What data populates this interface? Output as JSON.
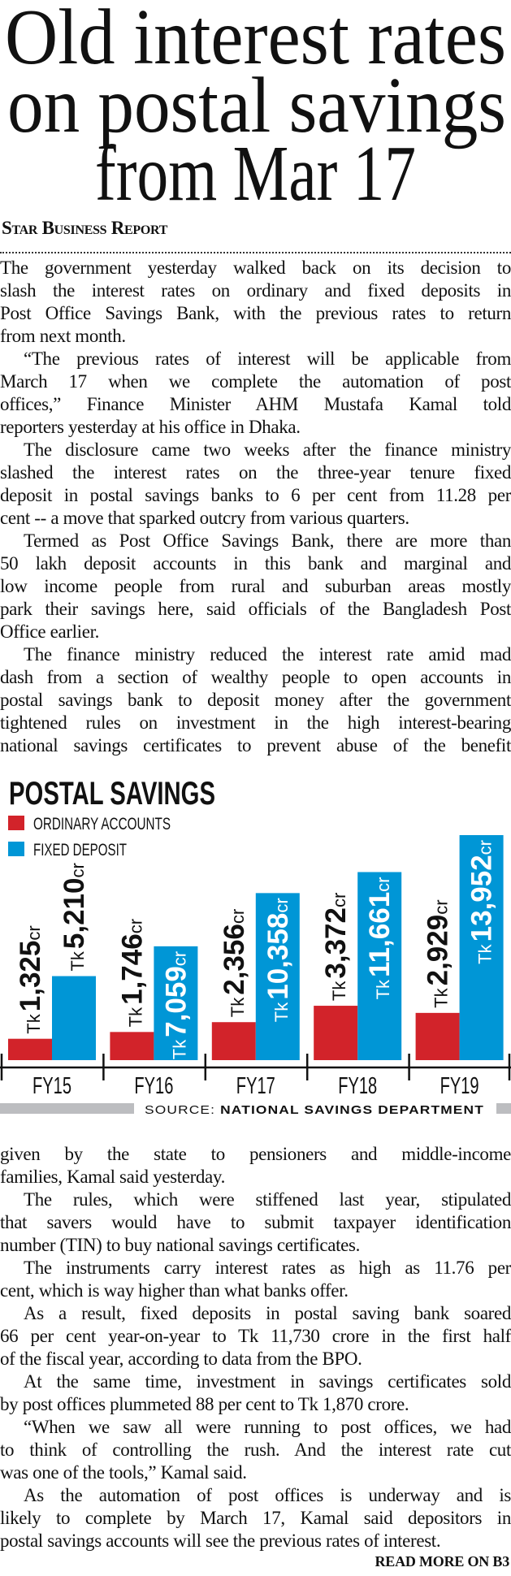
{
  "headline": {
    "lines": [
      "Old interest rates",
      "on postal savings",
      "from Mar 17"
    ]
  },
  "byline": "Star Business Report",
  "article": {
    "block1": [
      {
        "indent": false,
        "ends": true,
        "lines": [
          "The government yesterday walked back on its decision to",
          "slash the interest rates on ordinary and fixed deposits in",
          "Post Office Savings Bank, with the previous rates to return",
          "from next month."
        ]
      },
      {
        "indent": true,
        "ends": true,
        "lines": [
          "“The previous rates of interest will be applicable from",
          "March 17 when we complete the automation of post",
          "offices,” Finance Minister AHM Mustafa Kamal told",
          "reporters yesterday at his office in Dhaka."
        ]
      },
      {
        "indent": true,
        "ends": true,
        "lines": [
          "The disclosure came two weeks after the finance ministry",
          "slashed the interest rates on the three-year tenure fixed",
          "deposit in postal savings banks to 6 per cent from 11.28 per",
          "cent -- a move that sparked outcry from various quarters."
        ]
      },
      {
        "indent": true,
        "ends": true,
        "lines": [
          "Termed as Post Office Savings Bank, there are more than",
          "50 lakh deposit accounts in this bank and marginal and",
          "low income people from rural and suburban areas mostly",
          "park their savings here, said officials of the Bangladesh Post",
          "Office earlier."
        ]
      },
      {
        "indent": true,
        "ends": false,
        "lines": [
          "The finance ministry reduced the interest rate amid mad",
          "dash from a section of wealthy people to open accounts in",
          "postal savings bank to deposit money after the government",
          "tightened rules on investment in the high interest-bearing",
          "national savings certificates to prevent abuse of the benefit"
        ]
      }
    ],
    "block2": [
      {
        "indent": false,
        "ends": true,
        "lines": [
          "given by the state to pensioners and middle-income",
          "families, Kamal said yesterday."
        ]
      },
      {
        "indent": true,
        "ends": true,
        "lines": [
          "The rules, which were stiffened last year, stipulated",
          "that savers would have to submit taxpayer identification",
          "number (TIN) to buy national savings certificates."
        ]
      },
      {
        "indent": true,
        "ends": true,
        "lines": [
          "The instruments carry interest rates as high as 11.76 per",
          "cent, which is way higher than what banks offer."
        ]
      },
      {
        "indent": true,
        "ends": true,
        "lines": [
          "As a result, fixed deposits in postal saving bank soared",
          "66 per cent year-on-year to Tk 11,730 crore in the first half",
          "of the fiscal year, according to data from the BPO."
        ]
      },
      {
        "indent": true,
        "ends": true,
        "lines": [
          "At the same time, investment in savings certificates sold",
          "by post offices plummeted 88 per cent to Tk 1,870 crore."
        ]
      },
      {
        "indent": true,
        "ends": true,
        "lines": [
          "“When we saw all were running to post offices, we had",
          "to think of controlling the rush. And the interest rate cut",
          "was one of the tools,” Kamal said."
        ]
      },
      {
        "indent": true,
        "ends": true,
        "lines": [
          "As the automation of post offices is underway and is",
          "likely to complete by March 17, Kamal said depositors in",
          "postal savings accounts will see the previous rates of interest."
        ]
      }
    ],
    "read_more": "READ MORE ON B3"
  },
  "chart_data": {
    "type": "bar",
    "title": "POSTAL SAVINGS",
    "categories": [
      "FY15",
      "FY16",
      "FY17",
      "FY18",
      "FY19"
    ],
    "series": [
      {
        "name": "ORDINARY ACCOUNTS",
        "color": "#d2232a",
        "values": [
          1325,
          1746,
          2356,
          3372,
          2929
        ]
      },
      {
        "name": "FIXED DEPOSIT",
        "color": "#0096d6",
        "values": [
          5210,
          7059,
          10358,
          11661,
          13952
        ]
      }
    ],
    "value_prefix": "Tk",
    "value_suffix": "cr",
    "xlabel": "",
    "ylabel": "",
    "ylim": [
      0,
      14000
    ],
    "grid": false,
    "legend_position": "top-left",
    "source_label": "SOURCE:",
    "source": "NATIONAL SAVINGS DEPARTMENT",
    "source_bar_color": "#bcbdc0"
  }
}
